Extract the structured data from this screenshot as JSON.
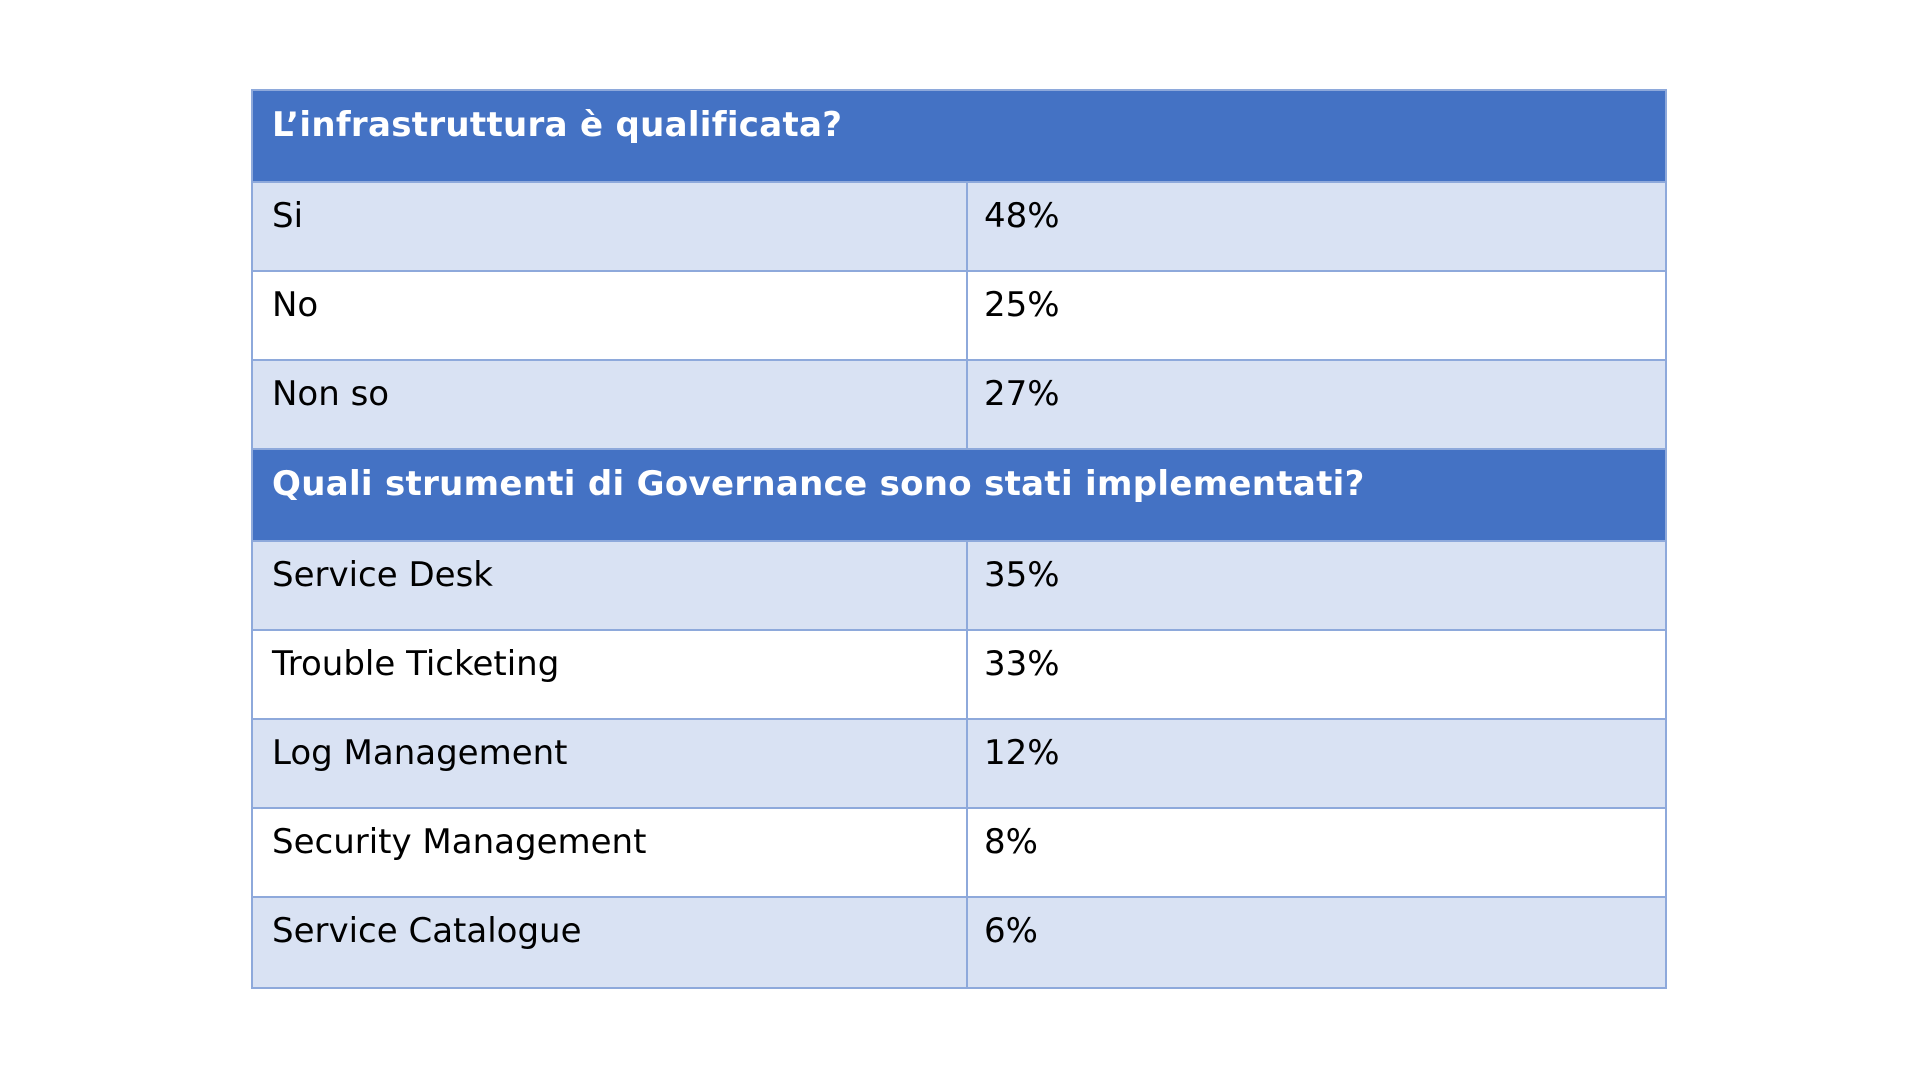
{
  "page": {
    "background": "#ffffff"
  },
  "table": {
    "colors": {
      "header_bg": "#4472c4",
      "header_text": "#ffffff",
      "row_alt_bg": "#d9e2f3",
      "row_bg": "#ffffff",
      "border": "#8ea9db",
      "body_text": "#000000"
    },
    "sections": [
      {
        "question": "L’infrastruttura è qualificata?",
        "rows": [
          {
            "label": "Si",
            "value": "48%"
          },
          {
            "label": "No",
            "value": "25%"
          },
          {
            "label": "Non so",
            "value": "27%"
          }
        ]
      },
      {
        "question": "Quali strumenti di Governance sono stati implementati?",
        "rows": [
          {
            "label": "Service Desk",
            "value": "35%"
          },
          {
            "label": "Trouble Ticketing",
            "value": "33%"
          },
          {
            "label": "Log Management",
            "value": "12%"
          },
          {
            "label": "Security Management",
            "value": "8%"
          },
          {
            "label": "Service Catalogue",
            "value": "6%"
          }
        ]
      }
    ]
  },
  "chart_data": [
    {
      "type": "table",
      "title": "L’infrastruttura è qualificata?",
      "categories": [
        "Si",
        "No",
        "Non so"
      ],
      "values": [
        48,
        25,
        27
      ],
      "unit": "%"
    },
    {
      "type": "table",
      "title": "Quali strumenti di Governance sono stati implementati?",
      "categories": [
        "Service Desk",
        "Trouble Ticketing",
        "Log Management",
        "Security Management",
        "Service Catalogue"
      ],
      "values": [
        35,
        33,
        12,
        8,
        6
      ],
      "unit": "%"
    }
  ]
}
